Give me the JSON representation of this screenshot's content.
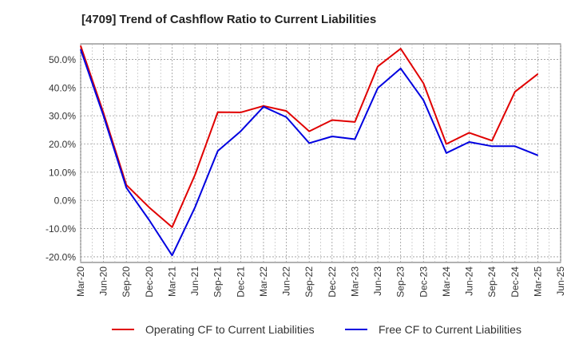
{
  "chart_data": {
    "type": "line",
    "title": "[4709]  Trend of Cashflow Ratio to Current Liabilities",
    "xlabel": "",
    "ylabel": "",
    "x": [
      "Mar-20",
      "Jun-20",
      "Sep-20",
      "Dec-20",
      "Mar-21",
      "Jun-21",
      "Sep-21",
      "Dec-21",
      "Mar-22",
      "Jun-22",
      "Sep-22",
      "Dec-22",
      "Mar-23",
      "Jun-23",
      "Sep-23",
      "Dec-23",
      "Mar-24",
      "Jun-24",
      "Sep-24",
      "Dec-24",
      "Mar-25",
      "Jun-25"
    ],
    "x_tick_labels": [
      "Mar-20",
      "Jun-20",
      "Sep-20",
      "Dec-20",
      "Mar-21",
      "Jun-21",
      "Sep-21",
      "Dec-21",
      "Mar-22",
      "Jun-22",
      "Sep-22",
      "Dec-22",
      "Mar-23",
      "Jun-23",
      "Sep-23",
      "Dec-23",
      "Mar-24",
      "Jun-24",
      "Sep-24",
      "Dec-24",
      "Mar-25",
      "Jun-25"
    ],
    "y_ticks": [
      50,
      40,
      30,
      20,
      10,
      0,
      -10,
      -20
    ],
    "y_tick_labels": [
      "50.0%",
      "40.0%",
      "30.0%",
      "20.0%",
      "10.0%",
      "0.0%",
      "-10.0%",
      "-20.0%"
    ],
    "ylim": [
      -22,
      55.5
    ],
    "grid": true,
    "legend_position": "bottom",
    "series": [
      {
        "name": "Operating CF to Current Liabilities",
        "color": "#e00000",
        "values": [
          54.8,
          31.0,
          5.5,
          -2.5,
          -9.5,
          9.0,
          31.3,
          31.2,
          33.5,
          31.7,
          24.5,
          28.5,
          27.8,
          47.5,
          53.8,
          41.5,
          20.0,
          24.0,
          21.2,
          38.5,
          44.8,
          null
        ]
      },
      {
        "name": "Free CF to Current Liabilities",
        "color": "#0000e0",
        "values": [
          53.5,
          30.0,
          4.5,
          -7.0,
          -19.5,
          -2.5,
          17.5,
          24.5,
          33.2,
          29.5,
          20.3,
          22.7,
          21.7,
          39.8,
          46.8,
          35.5,
          16.8,
          20.7,
          19.2,
          19.2,
          16.0,
          null
        ]
      }
    ]
  }
}
